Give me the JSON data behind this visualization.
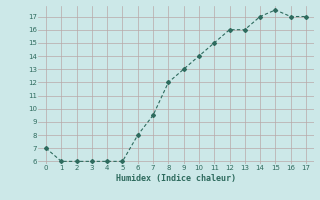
{
  "x": [
    0,
    1,
    2,
    3,
    4,
    5,
    6,
    7,
    8,
    9,
    10,
    11,
    12,
    13,
    14,
    15,
    16,
    17
  ],
  "y": [
    7,
    6,
    6,
    6,
    6,
    6,
    8,
    9.5,
    12,
    13,
    14,
    15,
    16,
    16,
    17,
    17.5,
    17,
    17
  ],
  "xlabel": "Humidex (Indice chaleur)",
  "ylim_min": 5.8,
  "ylim_max": 17.8,
  "xlim_min": -0.5,
  "xlim_max": 17.5,
  "yticks": [
    6,
    7,
    8,
    9,
    10,
    11,
    12,
    13,
    14,
    15,
    16,
    17
  ],
  "xticks": [
    0,
    1,
    2,
    3,
    4,
    5,
    6,
    7,
    8,
    9,
    10,
    11,
    12,
    13,
    14,
    15,
    16,
    17
  ],
  "line_color": "#2e6b5e",
  "bg_color": "#cce8e8",
  "grid_color": "#b8a8a8",
  "tick_label_color": "#2e6b5e",
  "xlabel_color": "#2e6b5e"
}
